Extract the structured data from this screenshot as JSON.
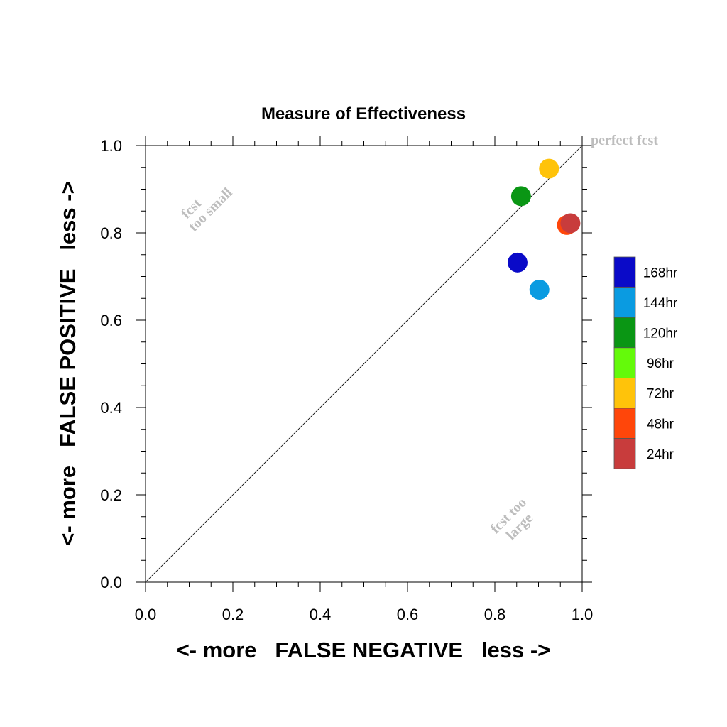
{
  "chart_data": {
    "type": "scatter",
    "title": "Measure of Effectiveness",
    "xlabel": "<- more   FALSE NEGATIVE   less ->",
    "ylabel": "<- more   FALSE POSITIVE   less ->",
    "xlim": [
      0.0,
      1.0
    ],
    "ylim": [
      0.0,
      1.0
    ],
    "x_ticks": [
      "0.0",
      "0.2",
      "0.4",
      "0.6",
      "0.8",
      "1.0"
    ],
    "y_ticks": [
      "0.0",
      "0.2",
      "0.4",
      "0.6",
      "0.8",
      "1.0"
    ],
    "diagonal": true,
    "grid": false,
    "legend_position": "right",
    "annotations": {
      "perfect": "perfect fcst",
      "too_small_line1": "fcst",
      "too_small_line2": "too small",
      "too_large_line1": "fcst too",
      "too_large_line2": "large"
    },
    "series": [
      {
        "name": "168hr",
        "color": "#0a0ac8",
        "x": 0.852,
        "y": 0.732
      },
      {
        "name": "144hr",
        "color": "#0a9be1",
        "x": 0.902,
        "y": 0.67
      },
      {
        "name": "120hr",
        "color": "#0a9614",
        "x": 0.86,
        "y": 0.884
      },
      {
        "name": "96hr",
        "color": "#64fa0a",
        "x": null,
        "y": null
      },
      {
        "name": "72hr",
        "color": "#ffc30a",
        "x": 0.924,
        "y": 0.947
      },
      {
        "name": "48hr",
        "color": "#ff460a",
        "x": 0.965,
        "y": 0.818
      },
      {
        "name": "24hr",
        "color": "#c83c3c",
        "x": 0.973,
        "y": 0.822
      }
    ]
  }
}
